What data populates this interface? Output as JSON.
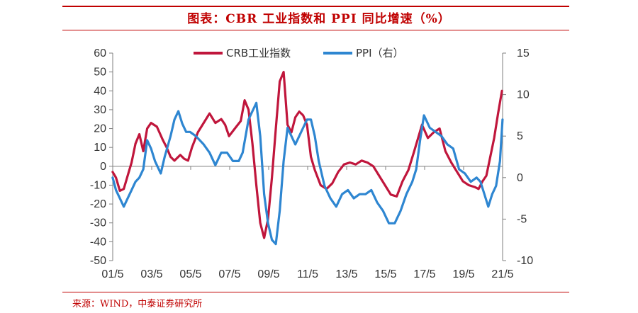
{
  "header": {
    "title": "图表：CBR 工业指数和 PPI 同比增速（%）",
    "source": "来源：WIND，中泰证券研究所"
  },
  "chart_data": {
    "type": "line",
    "x_tick_labels": [
      "01/5",
      "03/5",
      "05/5",
      "07/5",
      "09/5",
      "11/5",
      "13/5",
      "15/5",
      "17/5",
      "19/5",
      "21/5"
    ],
    "y_left_ticks": [
      60,
      50,
      40,
      30,
      20,
      10,
      0,
      -10,
      -20,
      -30,
      -40,
      -50
    ],
    "y_right_ticks": [
      15,
      10,
      5,
      0,
      -5,
      -10
    ],
    "ylim_left": [
      -50,
      60
    ],
    "ylim_right": [
      -10,
      15
    ],
    "xlim": [
      2001.333,
      2021.333
    ],
    "grid": false,
    "legend_position": "top",
    "colors": {
      "crb": "#c0163c",
      "ppi": "#2e86d1"
    },
    "series": [
      {
        "name": "CRB工业指数",
        "axis": "left",
        "color": "#c0163c",
        "x": [
          2001.33,
          2001.5,
          2001.7,
          2001.9,
          2002.1,
          2002.3,
          2002.5,
          2002.7,
          2002.9,
          2003.1,
          2003.3,
          2003.6,
          2003.9,
          2004.1,
          2004.3,
          2004.5,
          2004.8,
          2005.0,
          2005.2,
          2005.4,
          2005.7,
          2006.0,
          2006.3,
          2006.6,
          2006.9,
          2007.1,
          2007.3,
          2007.6,
          2007.9,
          2008.1,
          2008.3,
          2008.5,
          2008.7,
          2008.9,
          2009.1,
          2009.3,
          2009.5,
          2009.7,
          2009.9,
          2010.1,
          2010.3,
          2010.5,
          2010.7,
          2010.9,
          2011.1,
          2011.3,
          2011.5,
          2011.7,
          2012.0,
          2012.3,
          2012.6,
          2012.9,
          2013.2,
          2013.5,
          2013.8,
          2014.1,
          2014.4,
          2014.7,
          2015.0,
          2015.3,
          2015.6,
          2015.9,
          2016.2,
          2016.5,
          2016.8,
          2017.0,
          2017.2,
          2017.5,
          2017.8,
          2018.1,
          2018.4,
          2018.7,
          2019.0,
          2019.3,
          2019.6,
          2019.9,
          2020.1,
          2020.3,
          2020.5,
          2020.7,
          2020.9,
          2021.1,
          2021.3
        ],
        "values": [
          -3,
          -6,
          -13,
          -12,
          -5,
          2,
          12,
          17,
          8,
          20,
          23,
          21,
          14,
          10,
          5,
          3,
          6,
          4,
          3,
          10,
          18,
          23,
          28,
          23,
          25,
          22,
          16,
          20,
          24,
          35,
          30,
          12,
          -10,
          -30,
          -38,
          -28,
          -6,
          20,
          45,
          50,
          22,
          18,
          26,
          29,
          27,
          22,
          5,
          -2,
          -10,
          -12,
          -9,
          -3,
          1,
          2,
          1,
          3,
          2,
          0,
          -5,
          -10,
          -15,
          -16,
          -8,
          -2,
          8,
          15,
          22,
          15,
          18,
          20,
          8,
          2,
          -3,
          -8,
          -10,
          -11,
          -12,
          -8,
          -5,
          5,
          15,
          28,
          40
        ]
      },
      {
        "name": "PPI（右）",
        "axis": "right",
        "color": "#2e86d1",
        "x": [
          2001.33,
          2001.5,
          2001.7,
          2001.9,
          2002.1,
          2002.3,
          2002.5,
          2002.7,
          2002.9,
          2003.1,
          2003.3,
          2003.5,
          2003.8,
          2004.0,
          2004.3,
          2004.5,
          2004.7,
          2004.9,
          2005.1,
          2005.3,
          2005.6,
          2006.0,
          2006.3,
          2006.6,
          2006.9,
          2007.2,
          2007.5,
          2007.8,
          2008.0,
          2008.3,
          2008.5,
          2008.7,
          2008.9,
          2009.1,
          2009.3,
          2009.5,
          2009.7,
          2009.9,
          2010.1,
          2010.3,
          2010.5,
          2010.7,
          2010.9,
          2011.1,
          2011.3,
          2011.5,
          2011.7,
          2011.9,
          2012.2,
          2012.5,
          2012.8,
          2013.1,
          2013.4,
          2013.7,
          2014.0,
          2014.3,
          2014.6,
          2014.9,
          2015.2,
          2015.5,
          2015.8,
          2016.1,
          2016.4,
          2016.7,
          2016.9,
          2017.1,
          2017.3,
          2017.6,
          2017.9,
          2018.2,
          2018.5,
          2018.8,
          2019.1,
          2019.4,
          2019.7,
          2020.0,
          2020.2,
          2020.4,
          2020.6,
          2020.8,
          2021.0,
          2021.2,
          2021.33
        ],
        "values": [
          0,
          -1.5,
          -2.5,
          -3.5,
          -2.5,
          -1.5,
          -0.5,
          0,
          1,
          4.5,
          3.5,
          2,
          0.5,
          2.5,
          5,
          7,
          8,
          6.5,
          5.5,
          5.5,
          5,
          4,
          3,
          1.5,
          3,
          3,
          2,
          2,
          3,
          7,
          8,
          9,
          5,
          -2,
          -5.5,
          -7.5,
          -8,
          -4,
          2,
          6,
          5,
          4,
          5,
          6,
          7,
          7,
          5,
          2,
          -1,
          -2.5,
          -3.5,
          -2,
          -1.5,
          -2.5,
          -2,
          -2,
          -1.5,
          -3,
          -4,
          -5.5,
          -5.5,
          -4,
          -2,
          -0.5,
          1,
          4.5,
          7.5,
          6,
          5.5,
          5,
          4,
          3.5,
          1,
          0.5,
          -0.5,
          0,
          -0.5,
          -2,
          -3.5,
          -2,
          -1,
          2,
          7
        ]
      }
    ]
  }
}
